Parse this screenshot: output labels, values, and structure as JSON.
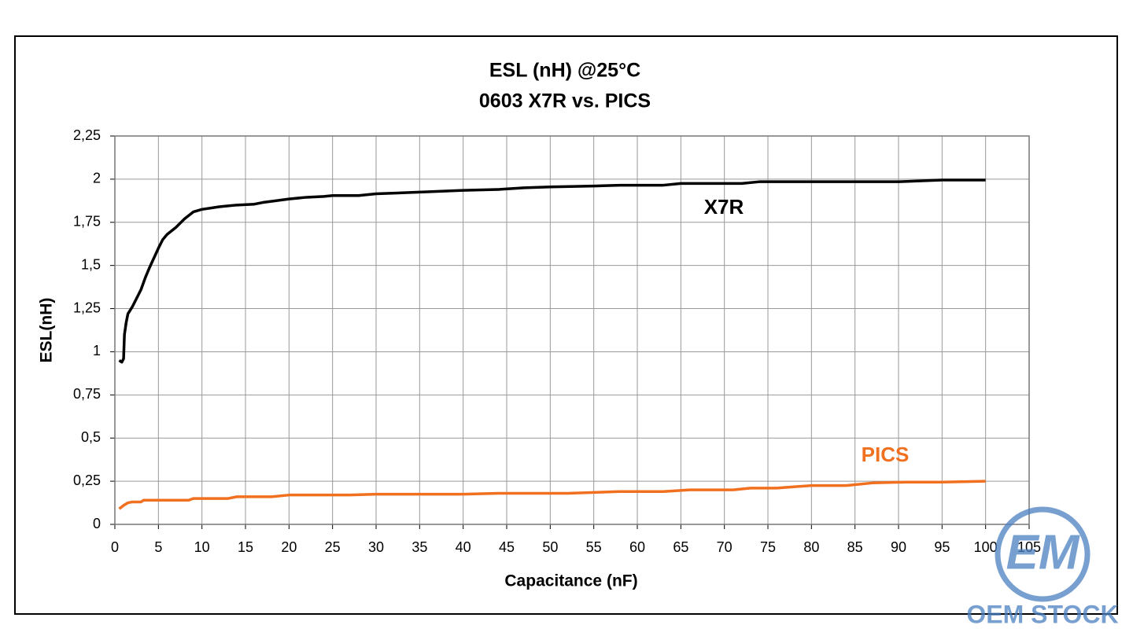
{
  "chart_data": {
    "type": "line",
    "title": "ESL (nH) @25°C",
    "subtitle": "0603 X7R vs. PICS",
    "x_label": "Capacitance (nF)",
    "y_label": "ESL(nH)",
    "xlim": [
      0,
      105
    ],
    "xticks": [
      0,
      5,
      10,
      15,
      20,
      25,
      30,
      35,
      40,
      45,
      50,
      55,
      60,
      65,
      70,
      75,
      80,
      85,
      90,
      95,
      100,
      105
    ],
    "ylim": [
      0,
      2.25
    ],
    "yticks": [
      0,
      {
        "value": 0.25,
        "label": "0,25"
      },
      {
        "value": 0.5,
        "label": "0,5"
      },
      {
        "value": 0.75,
        "label": "0,75"
      },
      1,
      {
        "value": 1.25,
        "label": "1,25"
      },
      {
        "value": 1.5,
        "label": "1,5"
      },
      {
        "value": 1.75,
        "label": "1,75"
      },
      2,
      {
        "value": 2.25,
        "label": "2,25"
      }
    ],
    "grid": true,
    "series": [
      {
        "name": "X7R",
        "color": "#000000",
        "x": [
          0.5,
          0.8,
          1.0,
          1.1,
          1.3,
          1.5,
          2,
          2.5,
          3,
          3.5,
          4,
          5,
          5.5,
          6,
          7,
          8,
          9,
          10,
          12,
          13,
          14,
          16,
          17,
          20,
          22,
          24,
          25,
          28,
          30,
          35,
          40,
          44,
          47,
          50,
          55,
          58,
          63,
          65,
          72,
          74,
          90,
          95,
          100
        ],
        "values": [
          0.95,
          0.94,
          0.96,
          1.1,
          1.17,
          1.22,
          1.26,
          1.31,
          1.36,
          1.43,
          1.49,
          1.6,
          1.65,
          1.68,
          1.72,
          1.77,
          1.81,
          1.825,
          1.84,
          1.845,
          1.85,
          1.855,
          1.865,
          1.885,
          1.895,
          1.9,
          1.905,
          1.905,
          1.915,
          1.925,
          1.935,
          1.94,
          1.95,
          1.955,
          1.96,
          1.965,
          1.965,
          1.975,
          1.975,
          1.985,
          1.985,
          1.995,
          1.995
        ]
      },
      {
        "name": "PICS",
        "color": "#f07020",
        "x": [
          0.5,
          1,
          1.5,
          2,
          3,
          3.3,
          8.5,
          9,
          13,
          14,
          18,
          20,
          27,
          30,
          40,
          44,
          52,
          58,
          63,
          66,
          71,
          73,
          76,
          80,
          84,
          87,
          91,
          95,
          100
        ],
        "values": [
          0.09,
          0.11,
          0.125,
          0.13,
          0.13,
          0.14,
          0.14,
          0.15,
          0.15,
          0.16,
          0.16,
          0.17,
          0.17,
          0.175,
          0.175,
          0.18,
          0.18,
          0.19,
          0.19,
          0.2,
          0.2,
          0.21,
          0.21,
          0.225,
          0.225,
          0.24,
          0.245,
          0.245,
          0.25
        ]
      }
    ]
  },
  "watermark": {
    "logo": "EM",
    "text": "OEM STOCK"
  }
}
